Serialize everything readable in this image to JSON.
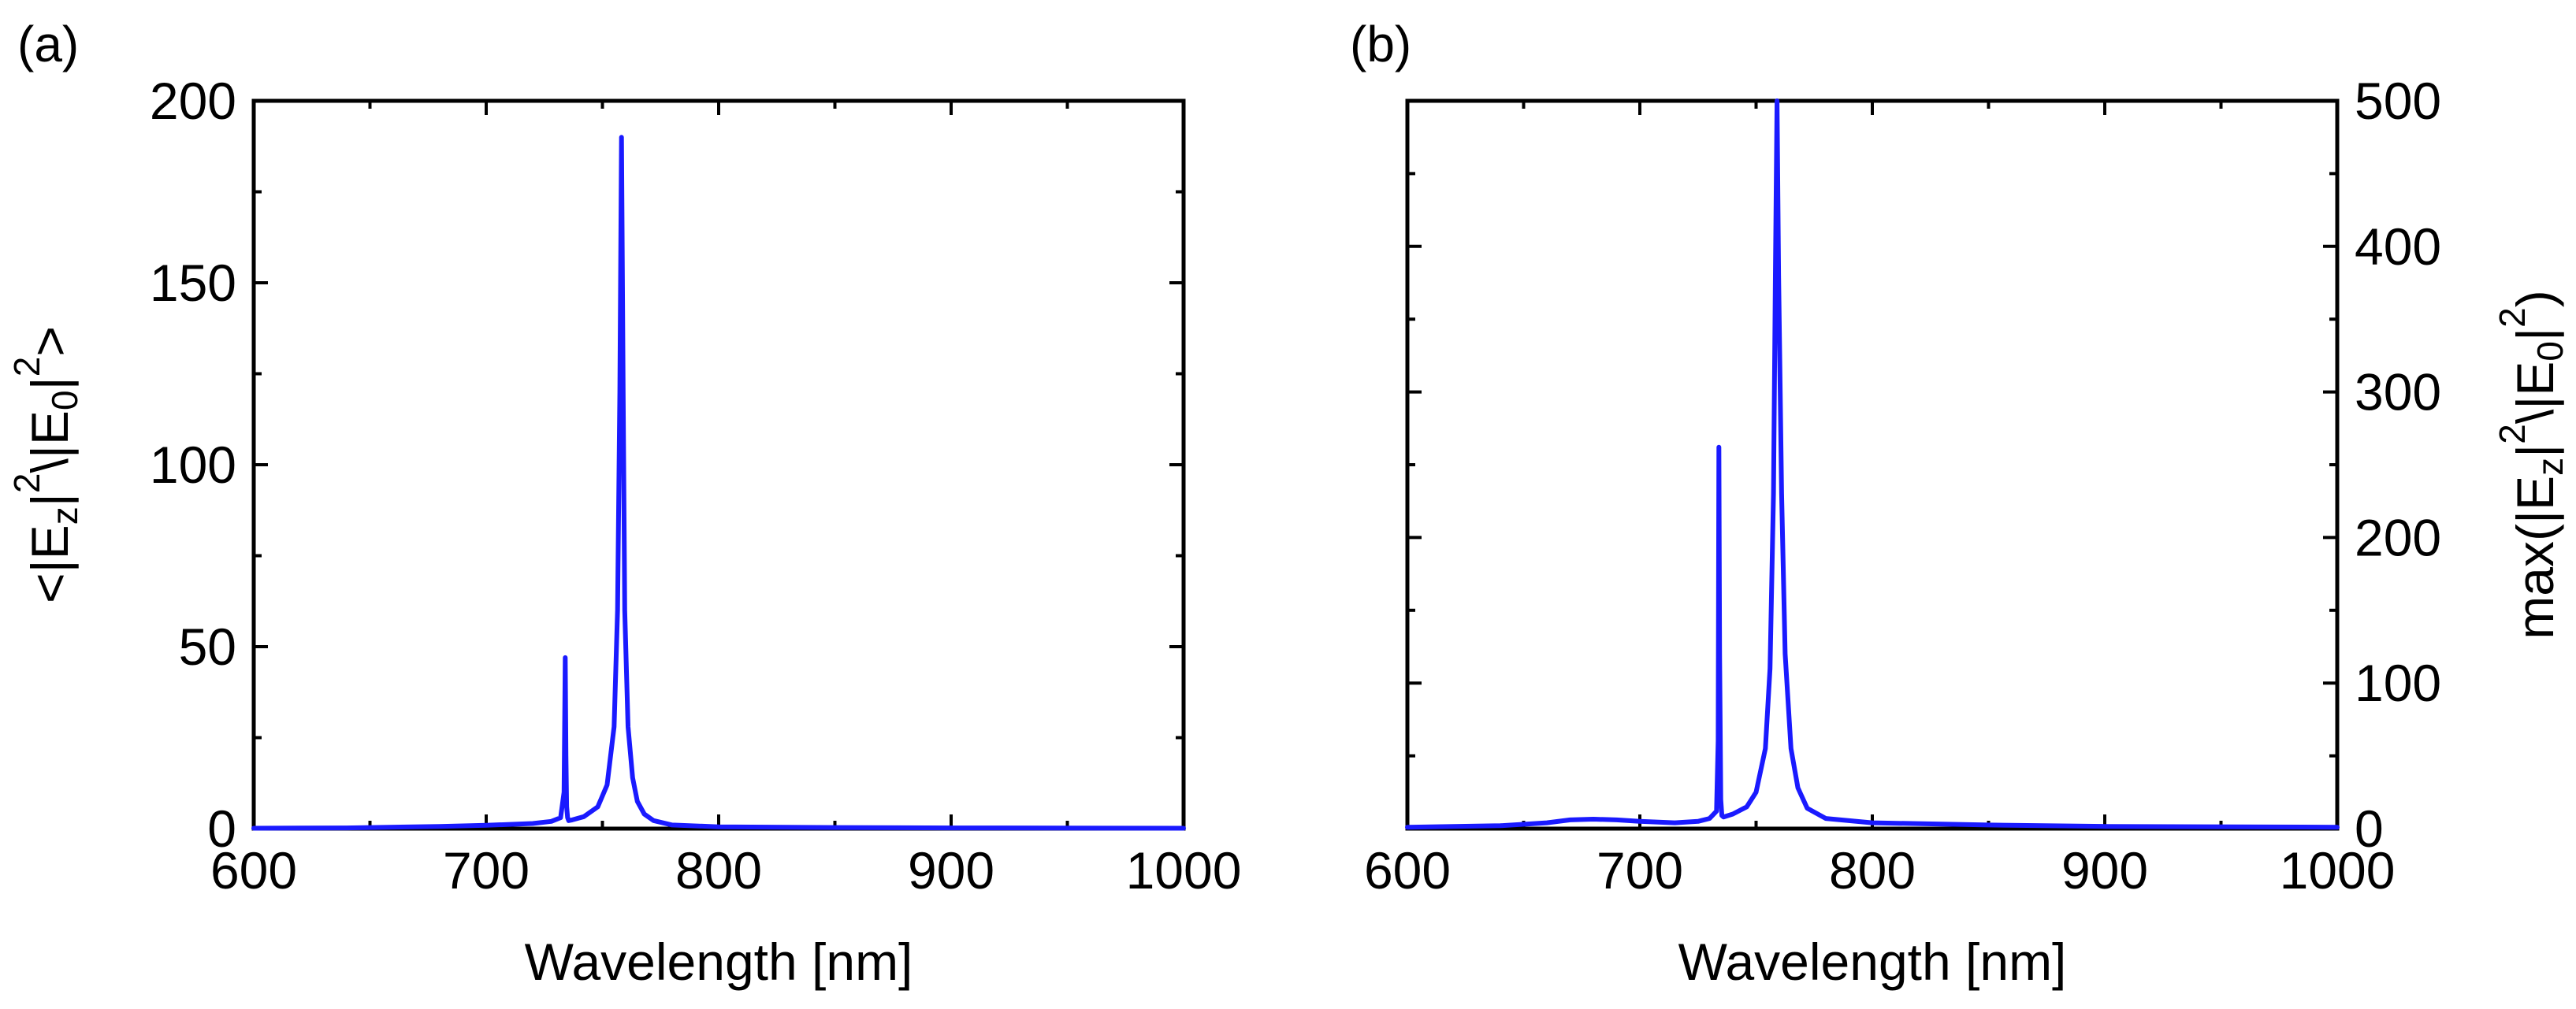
{
  "chart_data": [
    {
      "type": "line",
      "panel_label": "(a)",
      "xlabel": "Wavelength [nm]",
      "ylabel": {
        "parts": [
          {
            "t": "<|E",
            "s": "n"
          },
          {
            "t": "z",
            "s": "sub"
          },
          {
            "t": "|",
            "s": "n"
          },
          {
            "t": "2",
            "s": "sup"
          },
          {
            "t": "\\|E",
            "s": "n"
          },
          {
            "t": "0",
            "s": "sub"
          },
          {
            "t": "|",
            "s": "n"
          },
          {
            "t": "2",
            "s": "sup"
          },
          {
            "t": ">",
            "s": "n"
          }
        ]
      },
      "y_axis_side": "left",
      "xlim": [
        600,
        1000
      ],
      "ylim": [
        0,
        200
      ],
      "xticks": [
        600,
        700,
        800,
        900,
        1000
      ],
      "xtick_labels": [
        "600",
        "700",
        "800",
        "900",
        "1000"
      ],
      "yticks": [
        0,
        50,
        100,
        150,
        200
      ],
      "ytick_labels": [
        "0",
        "50",
        "100",
        "150",
        "200"
      ],
      "grid": false,
      "color": "#1a1aff",
      "series": [
        {
          "name": "<|Ez|^2/|E0|^2>",
          "x": [
            600,
            640,
            680,
            700,
            720,
            728,
            732,
            733.5,
            734,
            734.3,
            734.6,
            735,
            735.5,
            737,
            742,
            748,
            752,
            755,
            756.5,
            757.5,
            758.2,
            758.9,
            759.6,
            761,
            763,
            765,
            768,
            772,
            780,
            800,
            850,
            900,
            1000
          ],
          "y": [
            0.1,
            0.2,
            0.6,
            0.9,
            1.4,
            2,
            3,
            10,
            47,
            20,
            6,
            3,
            2.2,
            2.4,
            3.3,
            6,
            12,
            28,
            60,
            120,
            190,
            120,
            60,
            28,
            14,
            7.5,
            4,
            2.2,
            1,
            0.5,
            0.3,
            0.2,
            0.1
          ]
        }
      ]
    },
    {
      "type": "line",
      "panel_label": "(b)",
      "xlabel": "Wavelength [nm]",
      "ylabel": {
        "parts": [
          {
            "t": "max(|E",
            "s": "n"
          },
          {
            "t": "z",
            "s": "sub"
          },
          {
            "t": "|",
            "s": "n"
          },
          {
            "t": "2",
            "s": "sup"
          },
          {
            "t": "\\|E",
            "s": "n"
          },
          {
            "t": "0",
            "s": "sub"
          },
          {
            "t": "|",
            "s": "n"
          },
          {
            "t": "2",
            "s": "sup"
          },
          {
            "t": ")",
            "s": "n"
          }
        ]
      },
      "y_axis_side": "right",
      "xlim": [
        600,
        1000
      ],
      "ylim": [
        0,
        500
      ],
      "xticks": [
        600,
        700,
        800,
        900,
        1000
      ],
      "xtick_labels": [
        "600",
        "700",
        "800",
        "900",
        "1000"
      ],
      "yticks": [
        0,
        100,
        200,
        300,
        400,
        500
      ],
      "ytick_labels": [
        "0",
        "100",
        "200",
        "300",
        "400",
        "500"
      ],
      "grid": false,
      "color": "#1a1aff",
      "series": [
        {
          "name": "max(|Ez|^2/|E0|^2)",
          "x": [
            600,
            640,
            660,
            670,
            680,
            690,
            700,
            715,
            725,
            730,
            733,
            733.7,
            734,
            734.3,
            734.8,
            735.3,
            736,
            740,
            746,
            750,
            754,
            756,
            757.5,
            758.3,
            759,
            759.7,
            761,
            762.5,
            765,
            768,
            772,
            780,
            800,
            850,
            900,
            1000
          ],
          "y": [
            1,
            2,
            4,
            6,
            6.5,
            6,
            5,
            4,
            5,
            7,
            12,
            60,
            262,
            120,
            20,
            9,
            8,
            10,
            15,
            25,
            55,
            110,
            230,
            380,
            500,
            380,
            230,
            120,
            55,
            28,
            14,
            7,
            4,
            2.5,
            1.5,
            1
          ]
        }
      ]
    }
  ]
}
